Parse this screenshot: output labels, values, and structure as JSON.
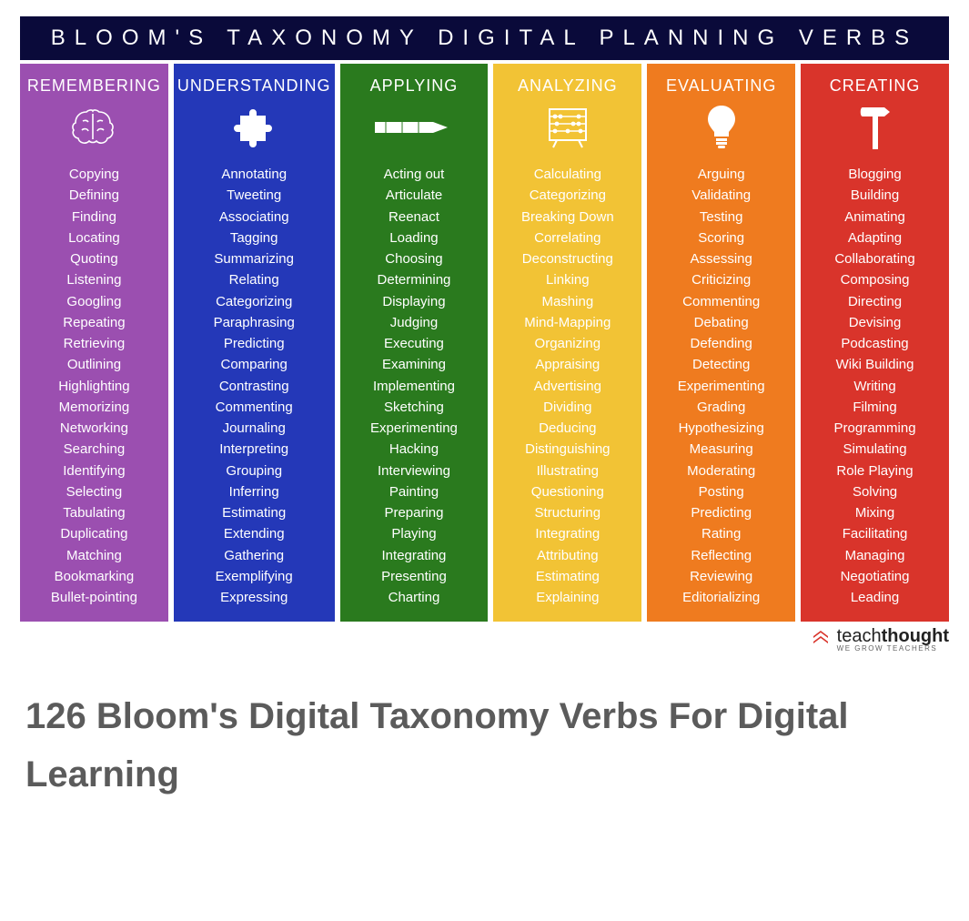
{
  "header": {
    "title": "BLOOM'S TAXONOMY DIGITAL PLANNING VERBS"
  },
  "columns": [
    {
      "id": "remembering",
      "title": "REMEMBERING",
      "color": "#9b4fb0",
      "icon": "brain",
      "verbs": [
        "Copying",
        "Defining",
        "Finding",
        "Locating",
        "Quoting",
        "Listening",
        "Googling",
        "Repeating",
        "Retrieving",
        "Outlining",
        "Highlighting",
        "Memorizing",
        "Networking",
        "Searching",
        "Identifying",
        "Selecting",
        "Tabulating",
        "Duplicating",
        "Matching",
        "Bookmarking",
        "Bullet-pointing"
      ]
    },
    {
      "id": "understanding",
      "title": "UNDERSTANDING",
      "color": "#2438b8",
      "icon": "puzzle",
      "verbs": [
        "Annotating",
        "Tweeting",
        "Associating",
        "Tagging",
        "Summarizing",
        "Relating",
        "Categorizing",
        "Paraphrasing",
        "Predicting",
        "Comparing",
        "Contrasting",
        "Commenting",
        "Journaling",
        "Interpreting",
        "Grouping",
        "Inferring",
        "Estimating",
        "Extending",
        "Gathering",
        "Exemplifying",
        "Expressing"
      ]
    },
    {
      "id": "applying",
      "title": "APPLYING",
      "color": "#2a7a1e",
      "icon": "pencil",
      "verbs": [
        "Acting out",
        "Articulate",
        "Reenact",
        "Loading",
        "Choosing",
        "Determining",
        "Displaying",
        "Judging",
        "Executing",
        "Examining",
        "Implementing",
        "Sketching",
        "Experimenting",
        "Hacking",
        "Interviewing",
        "Painting",
        "Preparing",
        "Playing",
        "Integrating",
        "Presenting",
        "Charting"
      ]
    },
    {
      "id": "analyzing",
      "title": "ANALYZING",
      "color": "#f2c335",
      "icon": "abacus",
      "verbs": [
        "Calculating",
        "Categorizing",
        "Breaking Down",
        "Correlating",
        "Deconstructing",
        "Linking",
        "Mashing",
        "Mind-Mapping",
        "Organizing",
        "Appraising",
        "Advertising",
        "Dividing",
        "Deducing",
        "Distinguishing",
        "Illustrating",
        "Questioning",
        "Structuring",
        "Integrating",
        "Attributing",
        "Estimating",
        "Explaining"
      ]
    },
    {
      "id": "evaluating",
      "title": "EVALUATING",
      "color": "#ef7b1f",
      "icon": "lightbulb",
      "verbs": [
        "Arguing",
        "Validating",
        "Testing",
        "Scoring",
        "Assessing",
        "Criticizing",
        "Commenting",
        "Debating",
        "Defending",
        "Detecting",
        "Experimenting",
        "Grading",
        "Hypothesizing",
        "Measuring",
        "Moderating",
        "Posting",
        "Predicting",
        "Rating",
        "Reflecting",
        "Reviewing",
        "Editorializing"
      ]
    },
    {
      "id": "creating",
      "title": "CREATING",
      "color": "#d9342b",
      "icon": "hammer",
      "verbs": [
        "Blogging",
        "Building",
        "Animating",
        "Adapting",
        "Collaborating",
        "Composing",
        "Directing",
        "Devising",
        "Podcasting",
        "Wiki Building",
        "Writing",
        "Filming",
        "Programming",
        "Simulating",
        "Role Playing",
        "Solving",
        "Mixing",
        "Facilitating",
        "Managing",
        "Negotiating",
        "Leading"
      ]
    }
  ],
  "attribution": {
    "brand_prefix": "teach",
    "brand_suffix": "thought",
    "tagline": "WE GROW TEACHERS",
    "logo_color": "#d9342b"
  },
  "headline": "126 Bloom's Digital Taxonomy Verbs For Digital Learning"
}
